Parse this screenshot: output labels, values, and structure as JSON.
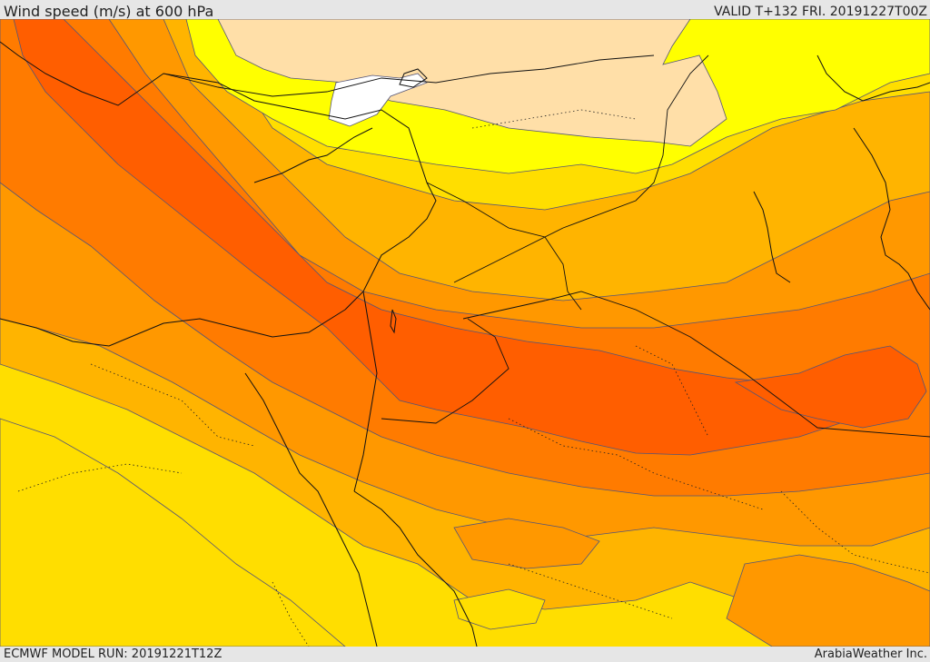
{
  "header": {
    "title": "Wind speed (m/s) at 600 hPa",
    "valid": "VALID T+132 FRI. 20191227T00Z"
  },
  "footer": {
    "model_run": "ECMWF MODEL RUN: 20191221T12Z",
    "credit": "ArabiaWeather Inc."
  },
  "colors": {
    "ocean_base": "#ffde00",
    "white": "#ffffff",
    "tan": "#ffdfa8",
    "bright_yellow": "#ffff00",
    "yellow": "#ffde00",
    "orange_light": "#ffb400",
    "orange": "#ff9800",
    "orange_dark": "#ff7b00",
    "red_orange": "#ff5e00",
    "contour": "#555577",
    "border": "#111111"
  }
}
